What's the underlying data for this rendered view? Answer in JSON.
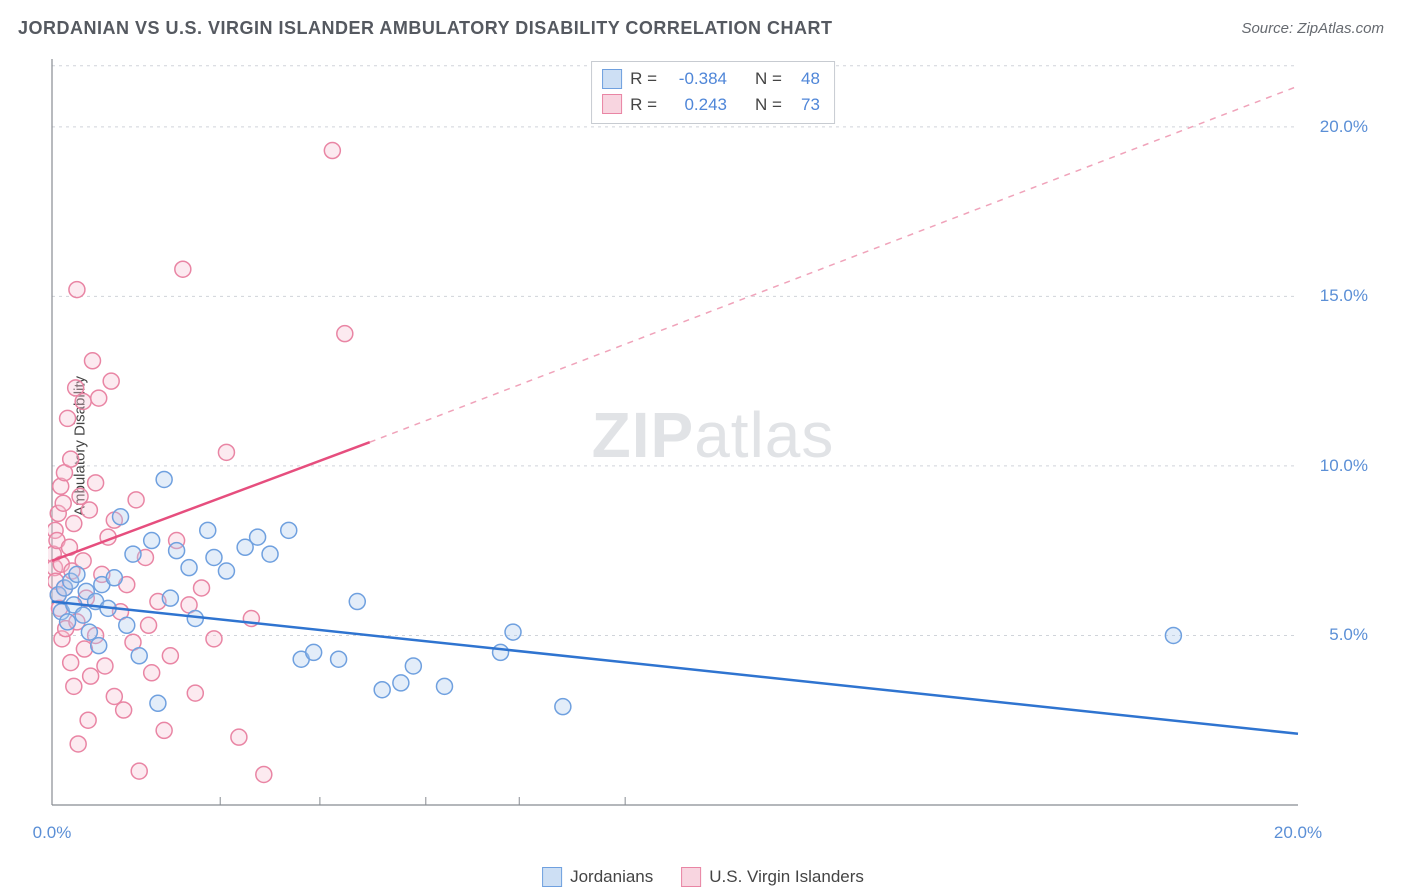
{
  "title": "JORDANIAN VS U.S. VIRGIN ISLANDER AMBULATORY DISABILITY CORRELATION CHART",
  "source": "Source: ZipAtlas.com",
  "ylabel": "Ambulatory Disability",
  "watermark_zip": "ZIP",
  "watermark_atlas": "atlas",
  "chart": {
    "type": "scatter",
    "xlim": [
      0,
      20
    ],
    "ylim": [
      0,
      22
    ],
    "yticks": [
      5,
      10,
      15,
      20
    ],
    "ytick_labels": [
      "5.0%",
      "10.0%",
      "15.0%",
      "20.0%"
    ],
    "xticks_major": [
      0,
      20
    ],
    "xtick_labels": [
      "0.0%",
      "20.0%"
    ],
    "xticks_minor": [
      2.7,
      4.3,
      6.0,
      7.5,
      9.2
    ],
    "background_color": "#ffffff",
    "grid_color": "#d0d4da",
    "axis_color": "#888c92",
    "marker_radius": 8,
    "series": [
      {
        "id": "jordanians",
        "label": "Jordanians",
        "color_stroke": "#6fa0df",
        "color_fill": "#aecbed",
        "swatch_border": "#6fa0df",
        "swatch_fill": "#cddff4",
        "r_value": "-0.384",
        "n_value": "48",
        "trend": {
          "x1": 0,
          "y1": 6.0,
          "x2": 20,
          "y2": 2.1,
          "color": "#2f74d0"
        },
        "points": [
          [
            0.1,
            6.2
          ],
          [
            0.15,
            5.7
          ],
          [
            0.2,
            6.4
          ],
          [
            0.25,
            5.4
          ],
          [
            0.3,
            6.6
          ],
          [
            0.35,
            5.9
          ],
          [
            0.4,
            6.8
          ],
          [
            0.5,
            5.6
          ],
          [
            0.55,
            6.3
          ],
          [
            0.6,
            5.1
          ],
          [
            0.7,
            6.0
          ],
          [
            0.75,
            4.7
          ],
          [
            0.8,
            6.5
          ],
          [
            0.9,
            5.8
          ],
          [
            1.0,
            6.7
          ],
          [
            1.1,
            8.5
          ],
          [
            1.2,
            5.3
          ],
          [
            1.3,
            7.4
          ],
          [
            1.4,
            4.4
          ],
          [
            1.6,
            7.8
          ],
          [
            1.7,
            3.0
          ],
          [
            1.8,
            9.6
          ],
          [
            1.9,
            6.1
          ],
          [
            2.0,
            7.5
          ],
          [
            2.2,
            7.0
          ],
          [
            2.3,
            5.5
          ],
          [
            2.5,
            8.1
          ],
          [
            2.6,
            7.3
          ],
          [
            2.8,
            6.9
          ],
          [
            3.1,
            7.6
          ],
          [
            3.3,
            7.9
          ],
          [
            3.5,
            7.4
          ],
          [
            3.8,
            8.1
          ],
          [
            4.0,
            4.3
          ],
          [
            4.2,
            4.5
          ],
          [
            4.6,
            4.3
          ],
          [
            4.9,
            6.0
          ],
          [
            5.3,
            3.4
          ],
          [
            5.6,
            3.6
          ],
          [
            5.8,
            4.1
          ],
          [
            6.3,
            3.5
          ],
          [
            7.2,
            4.5
          ],
          [
            7.4,
            5.1
          ],
          [
            8.2,
            2.9
          ],
          [
            18.0,
            5.0
          ]
        ]
      },
      {
        "id": "usvi",
        "label": "U.S. Virgin Islanders",
        "color_stroke": "#e985a4",
        "color_fill": "#f6c4d3",
        "swatch_border": "#e985a4",
        "swatch_fill": "#f8d5e0",
        "r_value": "0.243",
        "n_value": "73",
        "trend_solid": {
          "x1": 0,
          "y1": 7.2,
          "x2": 5.1,
          "y2": 10.7,
          "color": "#e64e7e"
        },
        "trend_dash": {
          "x1": 5.1,
          "y1": 10.7,
          "x2": 20,
          "y2": 21.2,
          "color": "#f0a3ba"
        },
        "points": [
          [
            0.02,
            7.4
          ],
          [
            0.04,
            7.0
          ],
          [
            0.05,
            8.1
          ],
          [
            0.06,
            6.6
          ],
          [
            0.08,
            7.8
          ],
          [
            0.1,
            6.2
          ],
          [
            0.1,
            8.6
          ],
          [
            0.12,
            5.8
          ],
          [
            0.14,
            9.4
          ],
          [
            0.15,
            7.1
          ],
          [
            0.16,
            4.9
          ],
          [
            0.18,
            8.9
          ],
          [
            0.2,
            6.4
          ],
          [
            0.2,
            9.8
          ],
          [
            0.22,
            5.2
          ],
          [
            0.25,
            11.4
          ],
          [
            0.28,
            7.6
          ],
          [
            0.3,
            4.2
          ],
          [
            0.3,
            10.2
          ],
          [
            0.32,
            6.9
          ],
          [
            0.35,
            3.5
          ],
          [
            0.35,
            8.3
          ],
          [
            0.38,
            12.3
          ],
          [
            0.4,
            5.4
          ],
          [
            0.4,
            15.2
          ],
          [
            0.42,
            1.8
          ],
          [
            0.45,
            9.1
          ],
          [
            0.5,
            7.2
          ],
          [
            0.5,
            11.9
          ],
          [
            0.52,
            4.6
          ],
          [
            0.55,
            6.1
          ],
          [
            0.58,
            2.5
          ],
          [
            0.6,
            8.7
          ],
          [
            0.62,
            3.8
          ],
          [
            0.65,
            13.1
          ],
          [
            0.7,
            5.0
          ],
          [
            0.7,
            9.5
          ],
          [
            0.75,
            12.0
          ],
          [
            0.8,
            6.8
          ],
          [
            0.85,
            4.1
          ],
          [
            0.9,
            7.9
          ],
          [
            0.95,
            12.5
          ],
          [
            1.0,
            3.2
          ],
          [
            1.0,
            8.4
          ],
          [
            1.1,
            5.7
          ],
          [
            1.15,
            2.8
          ],
          [
            1.2,
            6.5
          ],
          [
            1.3,
            4.8
          ],
          [
            1.35,
            9.0
          ],
          [
            1.4,
            1.0
          ],
          [
            1.5,
            7.3
          ],
          [
            1.55,
            5.3
          ],
          [
            1.6,
            3.9
          ],
          [
            1.7,
            6.0
          ],
          [
            1.8,
            2.2
          ],
          [
            1.9,
            4.4
          ],
          [
            2.0,
            7.8
          ],
          [
            2.1,
            15.8
          ],
          [
            2.2,
            5.9
          ],
          [
            2.3,
            3.3
          ],
          [
            2.4,
            6.4
          ],
          [
            2.6,
            4.9
          ],
          [
            2.8,
            10.4
          ],
          [
            3.0,
            2.0
          ],
          [
            3.2,
            5.5
          ],
          [
            3.4,
            0.9
          ],
          [
            4.5,
            19.3
          ],
          [
            4.7,
            13.9
          ]
        ]
      }
    ],
    "legend_top": {
      "r_label": "R =",
      "n_label": "N ="
    },
    "legend_bottom_items": [
      "jordanians",
      "usvi"
    ]
  }
}
